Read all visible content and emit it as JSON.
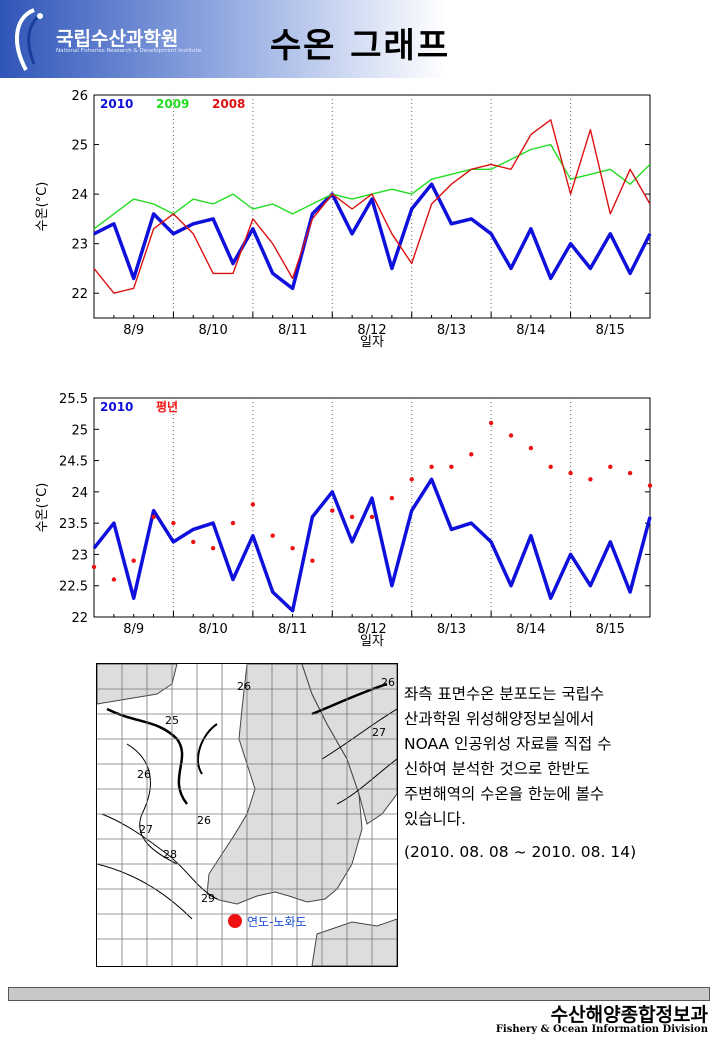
{
  "header": {
    "logo_text": "국립수산과학원",
    "logo_sub": "National Fisheries Research & Development Institute",
    "page_title": "수온 그래프"
  },
  "colors": {
    "y2010": "#1010dd",
    "y2009": "#22dd22",
    "y2008": "#dd1111",
    "normal": "#ee1111"
  },
  "chart_data": [
    {
      "type": "line",
      "title": "",
      "xlabel": "일자",
      "ylabel": "수온(°C)",
      "ylim": [
        21.5,
        26
      ],
      "yticks": [
        "26",
        "25",
        "24",
        "23",
        "22"
      ],
      "ytick_values": [
        26,
        25,
        24,
        23,
        22
      ],
      "categories": [
        "8/9",
        "8/10",
        "8/11",
        "8/12",
        "8/13",
        "8/14",
        "8/15"
      ],
      "xlim": [
        0,
        7
      ],
      "grid": "dotted vertical day separators",
      "legend_position": "top-left",
      "x": [
        0,
        0.25,
        0.5,
        0.75,
        1,
        1.25,
        1.5,
        1.75,
        2,
        2.25,
        2.5,
        2.75,
        3,
        3.25,
        3.5,
        3.75,
        4,
        4.25,
        4.5,
        4.75,
        5,
        5.25,
        5.5,
        5.75,
        6,
        6.25,
        6.5,
        6.75,
        7
      ],
      "series": [
        {
          "name": "2010",
          "color": "#1010dd",
          "values": [
            23.2,
            23.4,
            22.3,
            23.6,
            23.2,
            23.4,
            23.5,
            22.6,
            23.3,
            22.4,
            22.1,
            23.6,
            24.0,
            23.2,
            23.9,
            22.5,
            23.7,
            24.2,
            23.4,
            23.5,
            23.2,
            22.5,
            23.3,
            22.3,
            23.0,
            22.5,
            23.2,
            22.4,
            23.2
          ]
        },
        {
          "name": "2009",
          "color": "#22dd22",
          "values": [
            23.3,
            23.6,
            23.9,
            23.8,
            23.6,
            23.9,
            23.8,
            24.0,
            23.7,
            23.8,
            23.6,
            23.8,
            24.0,
            23.9,
            24.0,
            24.1,
            24.0,
            24.3,
            24.4,
            24.5,
            24.5,
            24.7,
            24.9,
            25.0,
            24.3,
            24.4,
            24.5,
            24.2,
            24.6
          ]
        },
        {
          "name": "2008",
          "color": "#dd1111",
          "values": [
            22.5,
            22.0,
            22.1,
            23.3,
            23.6,
            23.2,
            22.4,
            22.4,
            23.5,
            23.0,
            22.3,
            23.5,
            24.0,
            23.7,
            24.0,
            23.2,
            22.6,
            23.8,
            24.2,
            24.5,
            24.6,
            24.5,
            25.2,
            25.5,
            24.0,
            25.3,
            23.6,
            24.5,
            23.8
          ]
        }
      ]
    },
    {
      "type": "line",
      "title": "",
      "xlabel": "일자",
      "ylabel": "수온(°C)",
      "ylim": [
        22,
        25.5
      ],
      "yticks": [
        "25.5",
        "25",
        "24.5",
        "24",
        "23.5",
        "23",
        "22.5",
        "22"
      ],
      "ytick_values": [
        25.5,
        25,
        24.5,
        24,
        23.5,
        23,
        22.5,
        22
      ],
      "categories": [
        "8/9",
        "8/10",
        "8/11",
        "8/12",
        "8/13",
        "8/14",
        "8/15"
      ],
      "xlim": [
        0,
        7
      ],
      "grid": "dotted vertical day separators",
      "legend_position": "top-left",
      "x": [
        0,
        0.25,
        0.5,
        0.75,
        1,
        1.25,
        1.5,
        1.75,
        2,
        2.25,
        2.5,
        2.75,
        3,
        3.25,
        3.5,
        3.75,
        4,
        4.25,
        4.5,
        4.75,
        5,
        5.25,
        5.5,
        5.75,
        6,
        6.25,
        6.5,
        6.75,
        7
      ],
      "series": [
        {
          "name": "2010",
          "color": "#1010dd",
          "style": "line",
          "values": [
            23.1,
            23.5,
            22.3,
            23.7,
            23.2,
            23.4,
            23.5,
            22.6,
            23.3,
            22.4,
            22.1,
            23.6,
            24.0,
            23.2,
            23.9,
            22.5,
            23.7,
            24.2,
            23.4,
            23.5,
            23.2,
            22.5,
            23.3,
            22.3,
            23.0,
            22.5,
            23.2,
            22.4,
            23.6
          ]
        },
        {
          "name": "평년",
          "color": "#ee1111",
          "style": "dots",
          "values": [
            22.8,
            22.6,
            22.9,
            23.6,
            23.5,
            23.2,
            23.1,
            23.5,
            23.8,
            23.3,
            23.1,
            22.9,
            23.7,
            23.6,
            23.6,
            23.9,
            24.2,
            24.4,
            24.4,
            24.6,
            25.1,
            24.9,
            24.7,
            24.4,
            24.3,
            24.2,
            24.4,
            24.3,
            24.1
          ]
        }
      ]
    }
  ],
  "map": {
    "contour_labels": [
      "26",
      "27",
      "25",
      "26",
      "27",
      "28",
      "29",
      "26",
      "26"
    ],
    "station_label": "연도-노화도"
  },
  "description": {
    "lines": [
      "좌측 표면수온 분포도는 국립수",
      "산과학원 위성해양정보실에서",
      "NOAA 인공위성 자료를 직접 수",
      "신하여 분석한 것으로  한반도",
      "주변해역의 수온을 한눈에 볼수",
      "있습니다."
    ],
    "period": "(2010. 08. 08 ~ 2010. 08. 14)"
  },
  "footer": {
    "title": "수산해양종합정보과",
    "subtitle": "Fishery & Ocean Information Division"
  }
}
